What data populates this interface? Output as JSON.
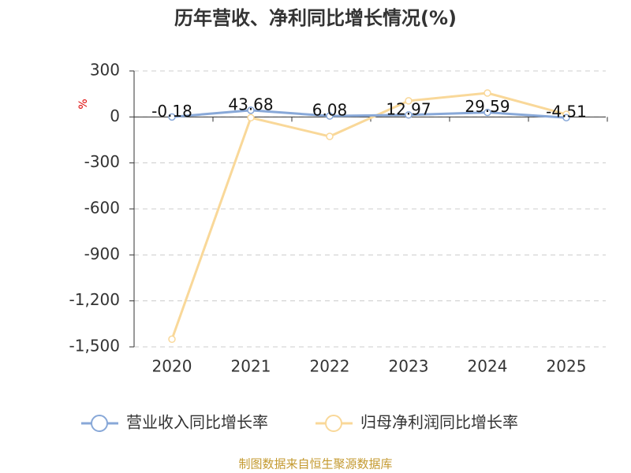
{
  "chart_data": {
    "type": "line",
    "title": "历年营收、净利同比增长情况(%)",
    "y_label": "%",
    "categories": [
      "2020",
      "2021",
      "2022",
      "2023",
      "2024",
      "2025"
    ],
    "series": [
      {
        "name": "营业收入同比增长率",
        "color": "#88a8d8",
        "values": [
          -0.18,
          43.68,
          6.08,
          12.97,
          29.59,
          -4.51
        ],
        "value_labels": [
          "-0.18",
          "43.68",
          "6.08",
          "12.97",
          "29.59",
          "-4.51"
        ]
      },
      {
        "name": "归母净利润同比增长率",
        "color": "#f9d899",
        "values": [
          -1450,
          -5,
          -127,
          105,
          156,
          17
        ]
      }
    ],
    "ylim": [
      -1500,
      300
    ],
    "yticks": [
      300,
      0,
      -300,
      -600,
      -900,
      {
        "value": -1200,
        "label": "-1,200"
      },
      {
        "value": -1500,
        "label": "-1,500"
      }
    ],
    "grid": true,
    "source": "制图数据来自恒生聚源数据库"
  }
}
